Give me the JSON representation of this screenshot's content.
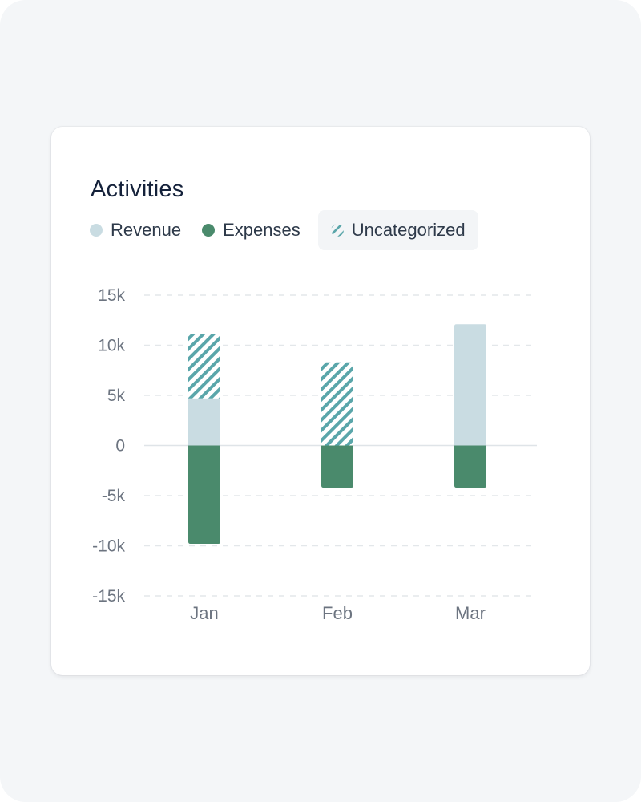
{
  "card": {
    "title": "Activities"
  },
  "legend": [
    {
      "label": "Revenue",
      "color": "#c9dce2",
      "style": "solid",
      "active": false
    },
    {
      "label": "Expenses",
      "color": "#4a8a6c",
      "style": "solid",
      "active": false
    },
    {
      "label": "Uncategorized",
      "color": "#5aa6aa",
      "style": "hatched",
      "active": true
    }
  ],
  "chart_data": {
    "type": "bar",
    "stacked": true,
    "title": "Activities",
    "xlabel": "",
    "ylabel": "",
    "categories": [
      "Jan",
      "Feb",
      "Mar"
    ],
    "ylim": [
      -15000,
      15000
    ],
    "yticks": [
      15000,
      10000,
      5000,
      0,
      -5000,
      -10000,
      -15000
    ],
    "ytick_labels": [
      "15k",
      "10k",
      "5k",
      "0",
      "-5k",
      "-10k",
      "-15k"
    ],
    "grid": true,
    "legend_position": "top-left",
    "series": [
      {
        "name": "Revenue",
        "values": [
          4700,
          0,
          12100
        ],
        "color": "#c9dce2",
        "pattern": "solid"
      },
      {
        "name": "Uncategorized",
        "values": [
          6400,
          8300,
          0
        ],
        "color": "#5aa6aa",
        "pattern": "hatched"
      },
      {
        "name": "Expenses",
        "values": [
          -9800,
          -4200,
          -4200
        ],
        "color": "#4a8a6c",
        "pattern": "solid"
      }
    ]
  }
}
